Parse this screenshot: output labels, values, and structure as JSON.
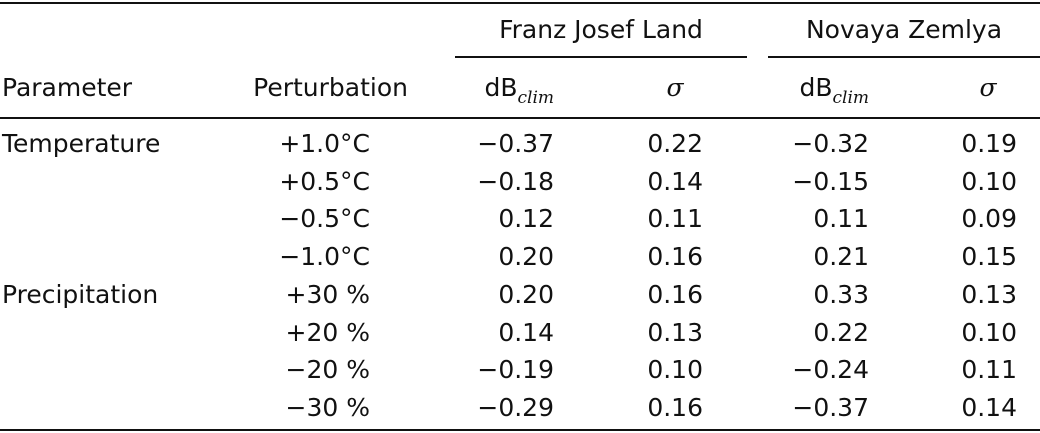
{
  "table": {
    "group_headers": [
      "Franz Josef Land",
      "Novaya Zemlya"
    ],
    "col_headers": {
      "parameter": "Parameter",
      "perturbation": "Perturbation",
      "db_main": "dB",
      "db_sub": "clim",
      "sigma": "σ"
    },
    "rows": [
      {
        "parameter": "Temperature",
        "perturbation": "+1.0°C",
        "fjl_db": "−0.37",
        "fjl_sigma": "0.22",
        "nz_db": "−0.32",
        "nz_sigma": "0.19"
      },
      {
        "parameter": "",
        "perturbation": "+0.5°C",
        "fjl_db": "−0.18",
        "fjl_sigma": "0.14",
        "nz_db": "−0.15",
        "nz_sigma": "0.10"
      },
      {
        "parameter": "",
        "perturbation": "−0.5°C",
        "fjl_db": "0.12",
        "fjl_sigma": "0.11",
        "nz_db": "0.11",
        "nz_sigma": "0.09"
      },
      {
        "parameter": "",
        "perturbation": "−1.0°C",
        "fjl_db": "0.20",
        "fjl_sigma": "0.16",
        "nz_db": "0.21",
        "nz_sigma": "0.15"
      },
      {
        "parameter": "Precipitation",
        "perturbation": "+30 %",
        "fjl_db": "0.20",
        "fjl_sigma": "0.16",
        "nz_db": "0.33",
        "nz_sigma": "0.13"
      },
      {
        "parameter": "",
        "perturbation": "+20 %",
        "fjl_db": "0.14",
        "fjl_sigma": "0.13",
        "nz_db": "0.22",
        "nz_sigma": "0.10"
      },
      {
        "parameter": "",
        "perturbation": "−20 %",
        "fjl_db": "−0.19",
        "fjl_sigma": "0.10",
        "nz_db": "−0.24",
        "nz_sigma": "0.11"
      },
      {
        "parameter": "",
        "perturbation": "−30 %",
        "fjl_db": "−0.29",
        "fjl_sigma": "0.16",
        "nz_db": "−0.37",
        "nz_sigma": "0.14"
      }
    ]
  }
}
